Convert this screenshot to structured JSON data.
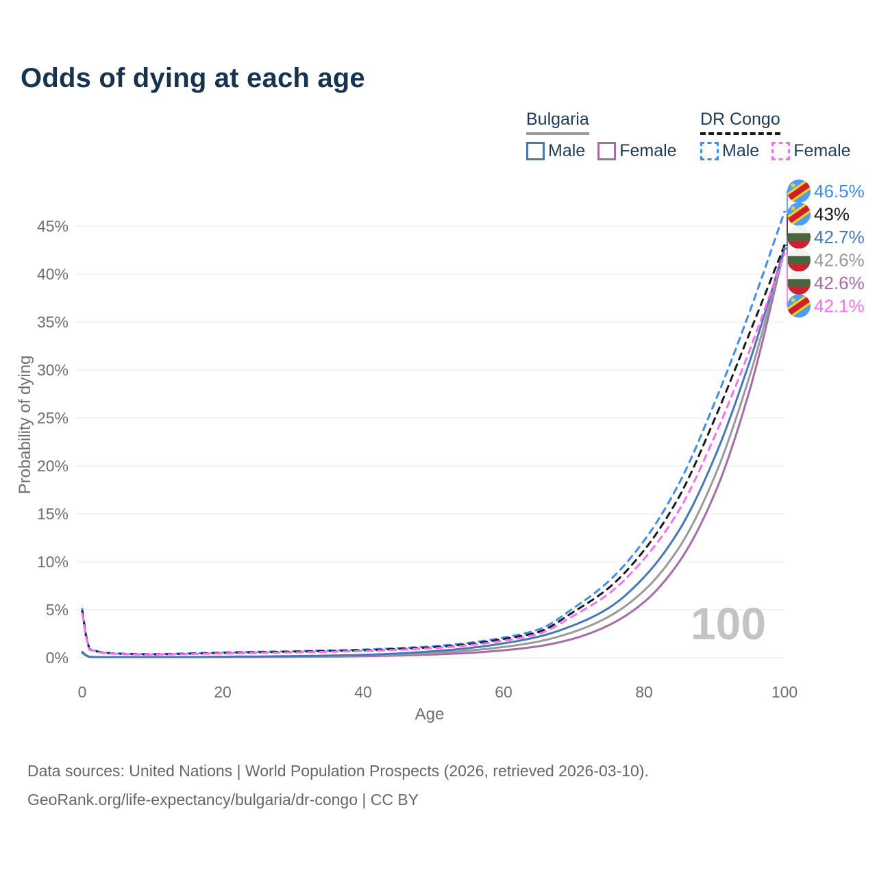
{
  "page": {
    "title": "Odds of dying at each age"
  },
  "legend": {
    "groups": [
      {
        "name": "Bulgaria",
        "line_style": "solid",
        "rule_color": "#9a9a9a",
        "items": [
          {
            "label": "Male",
            "color": "#4677b8"
          },
          {
            "label": "Female",
            "color": "#a869ad"
          }
        ]
      },
      {
        "name": "DR Congo",
        "line_style": "dashed",
        "rule_color": "#1a1a1a",
        "items": [
          {
            "label": "Male",
            "color": "#3d8bf5"
          },
          {
            "label": "Female",
            "color": "#fb6ef2"
          }
        ]
      }
    ]
  },
  "watermark_age": "100",
  "footer": {
    "line1": "Data sources: United Nations | World Population Prospects (2026, retrieved 2026-03-10).",
    "line2": "GeoRank.org/life-expectancy/bulgaria/dr-congo | CC BY"
  },
  "chart_data": {
    "type": "line",
    "title": "Odds of dying at each age",
    "xlabel": "Age",
    "ylabel": "Probability of dying",
    "xlim": [
      0,
      100
    ],
    "ylim_pct": [
      0,
      47
    ],
    "x_ticks": [
      0,
      20,
      40,
      60,
      80,
      100
    ],
    "y_ticks_pct": [
      0,
      5,
      10,
      15,
      20,
      25,
      30,
      35,
      40,
      45
    ],
    "grid": "horizontal-only",
    "legend_position": "top-right",
    "ages": [
      0,
      1,
      5,
      10,
      15,
      20,
      25,
      30,
      35,
      40,
      45,
      50,
      55,
      60,
      65,
      70,
      75,
      80,
      85,
      90,
      95,
      100
    ],
    "series": [
      {
        "id": "drc-male",
        "country": "DR Congo",
        "sex": "Male",
        "flag": "drc",
        "color": "#3d8bf5",
        "dashed": true,
        "end_label": "46.5%",
        "values": [
          5.1,
          0.95,
          0.45,
          0.38,
          0.45,
          0.55,
          0.62,
          0.68,
          0.75,
          0.85,
          1.0,
          1.2,
          1.55,
          2.1,
          2.95,
          5.2,
          8.0,
          12.2,
          18.2,
          26.5,
          36.0,
          46.5
        ]
      },
      {
        "id": "drc-both",
        "country": "DR Congo",
        "sex": "Both sexes",
        "flag": "drc",
        "color": "#1a1a1a",
        "dashed": true,
        "end_label": "43%",
        "values": [
          4.85,
          0.9,
          0.42,
          0.35,
          0.42,
          0.5,
          0.57,
          0.63,
          0.7,
          0.78,
          0.92,
          1.1,
          1.42,
          1.95,
          2.7,
          4.8,
          7.3,
          11.2,
          16.8,
          24.8,
          33.8,
          43.0
        ]
      },
      {
        "id": "drc-female",
        "country": "DR Congo",
        "sex": "Female",
        "flag": "drc",
        "color": "#fb6ef2",
        "dashed": true,
        "end_label": "42.1%",
        "values": [
          4.6,
          0.85,
          0.4,
          0.33,
          0.38,
          0.45,
          0.5,
          0.56,
          0.62,
          0.7,
          0.83,
          1.0,
          1.3,
          1.78,
          2.5,
          4.4,
          6.7,
          10.3,
          15.4,
          23.0,
          32.0,
          42.1
        ]
      },
      {
        "id": "bg-male",
        "country": "Bulgaria",
        "sex": "Male",
        "flag": "bg",
        "color": "#4677b8",
        "dashed": false,
        "end_label": "42.7%",
        "values": [
          0.6,
          0.1,
          0.04,
          0.04,
          0.07,
          0.11,
          0.13,
          0.17,
          0.22,
          0.3,
          0.45,
          0.68,
          1.0,
          1.5,
          2.2,
          3.4,
          5.2,
          8.4,
          13.3,
          20.8,
          30.8,
          42.7
        ]
      },
      {
        "id": "bg-both",
        "country": "Bulgaria",
        "sex": "Both sexes",
        "flag": "bg",
        "color": "#9a9a9a",
        "dashed": false,
        "end_label": "42.6%",
        "values": [
          0.55,
          0.09,
          0.035,
          0.035,
          0.06,
          0.09,
          0.1,
          0.13,
          0.17,
          0.23,
          0.34,
          0.5,
          0.75,
          1.12,
          1.7,
          2.7,
          4.3,
          7.0,
          11.5,
          18.8,
          29.3,
          42.6
        ]
      },
      {
        "id": "bg-female",
        "country": "Bulgaria",
        "sex": "Female",
        "flag": "bg",
        "color": "#a869ad",
        "dashed": false,
        "end_label": "42.6%",
        "values": [
          0.5,
          0.08,
          0.03,
          0.03,
          0.05,
          0.06,
          0.08,
          0.1,
          0.12,
          0.16,
          0.23,
          0.34,
          0.5,
          0.78,
          1.2,
          2.0,
          3.4,
          5.8,
          10.0,
          17.0,
          27.8,
          42.6
        ]
      }
    ],
    "draw_order": [
      "bg-female",
      "bg-both",
      "bg-male",
      "drc-male",
      "drc-both",
      "drc-female"
    ],
    "end_label_order": [
      "drc-male",
      "drc-both",
      "bg-male",
      "bg-both",
      "bg-female",
      "drc-female"
    ]
  }
}
